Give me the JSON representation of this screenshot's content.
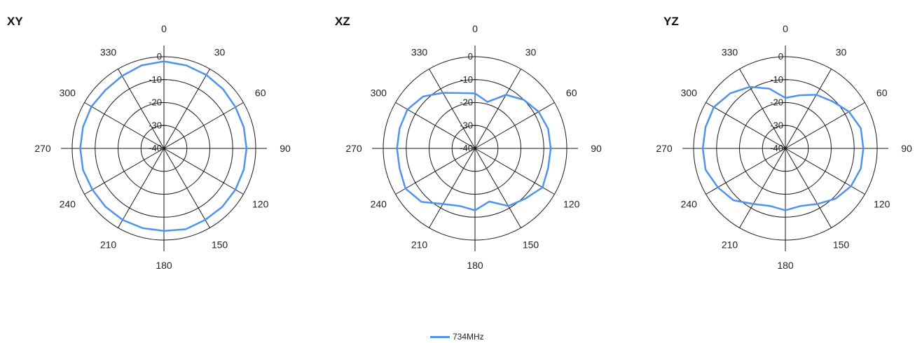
{
  "chart_data": [
    {
      "type": "polar-line",
      "title": "XY",
      "angle_ticks": [
        0,
        30,
        60,
        90,
        120,
        150,
        180,
        210,
        240,
        270,
        300,
        330
      ],
      "radial_ticks": [
        0,
        -10,
        -20,
        -30,
        -40
      ],
      "rlim": [
        -40,
        0
      ],
      "series": [
        {
          "name": "734MHz",
          "angles": [
            0,
            15,
            30,
            45,
            60,
            75,
            90,
            105,
            120,
            135,
            150,
            165,
            180,
            195,
            210,
            225,
            240,
            255,
            270,
            285,
            300,
            315,
            330,
            345
          ],
          "values": [
            -2,
            -2.5,
            -3,
            -3.5,
            -4,
            -4,
            -4,
            -4,
            -4,
            -4,
            -4,
            -3.5,
            -4,
            -4,
            -4,
            -4,
            -4,
            -3.5,
            -3.5,
            -3.5,
            -3.5,
            -4,
            -3.5,
            -2.5
          ]
        }
      ]
    },
    {
      "type": "polar-line",
      "title": "XZ",
      "angle_ticks": [
        0,
        30,
        60,
        90,
        120,
        150,
        180,
        210,
        240,
        270,
        300,
        330
      ],
      "radial_ticks": [
        0,
        -10,
        -20,
        -30,
        -40
      ],
      "rlim": [
        -40,
        0
      ],
      "series": [
        {
          "name": "734MHz",
          "angles": [
            0,
            15,
            30,
            45,
            60,
            75,
            90,
            105,
            120,
            135,
            150,
            165,
            180,
            195,
            210,
            225,
            240,
            255,
            270,
            285,
            300,
            315,
            330,
            345
          ],
          "values": [
            -16,
            -19,
            -13,
            -10,
            -8,
            -7,
            -7,
            -7,
            -6,
            -9,
            -11,
            -16,
            -13,
            -14,
            -12,
            -7,
            -5,
            -6,
            -6,
            -6,
            -6,
            -8,
            -12,
            -15
          ]
        }
      ]
    },
    {
      "type": "polar-line",
      "title": "YZ",
      "angle_ticks": [
        0,
        30,
        60,
        90,
        120,
        150,
        180,
        210,
        240,
        270,
        300,
        330
      ],
      "radial_ticks": [
        0,
        -10,
        -20,
        -30,
        -40
      ],
      "rlim": [
        -40,
        0
      ],
      "series": [
        {
          "name": "734MHz",
          "angles": [
            0,
            15,
            30,
            45,
            60,
            75,
            90,
            105,
            120,
            135,
            150,
            165,
            180,
            195,
            210,
            225,
            240,
            255,
            270,
            285,
            300,
            315,
            330,
            345
          ],
          "values": [
            -18,
            -16,
            -13,
            -11,
            -8,
            -6,
            -6,
            -6,
            -7,
            -9,
            -12,
            -14,
            -13,
            -14,
            -12,
            -8,
            -6,
            -4,
            -4,
            -4,
            -4,
            -6,
            -9,
            -13
          ]
        }
      ]
    }
  ],
  "legend": {
    "label": "734MHz",
    "color": "#4f94ea"
  }
}
